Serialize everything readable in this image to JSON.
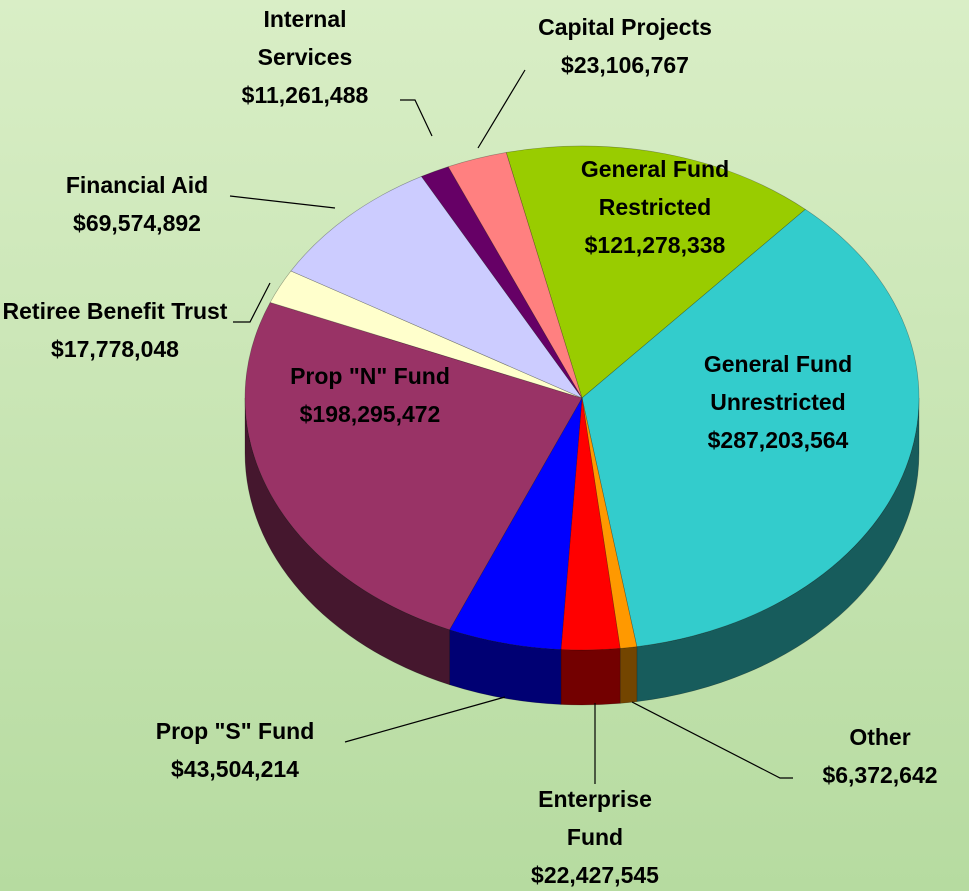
{
  "chart_data": {
    "type": "pie",
    "categories": [
      "General Fund Restricted",
      "General Fund Unrestricted",
      "Other",
      "Enterprise Fund",
      "Prop \"S\" Fund",
      "Prop \"N\" Fund",
      "Retiree Benefit Trust",
      "Financial Aid",
      "Internal Services",
      "Capital Projects"
    ],
    "values": [
      121278338,
      287203564,
      6372642,
      22427545,
      43504214,
      198295472,
      17778048,
      69574892,
      11261488,
      23106767
    ],
    "value_labels": [
      "$121,278,338",
      "$287,203,564",
      "$6,372,642",
      "$22,427,545",
      "$43,504,214",
      "$198,295,472",
      "$17,778,048",
      "$69,574,892",
      "$11,261,488",
      "$23,106,767"
    ],
    "colors": [
      "#99cc00",
      "#33cccc",
      "#ff9900",
      "#ff0000",
      "#0000ff",
      "#993366",
      "#ffffcc",
      "#ccccff",
      "#660066",
      "#ff8080"
    ]
  }
}
